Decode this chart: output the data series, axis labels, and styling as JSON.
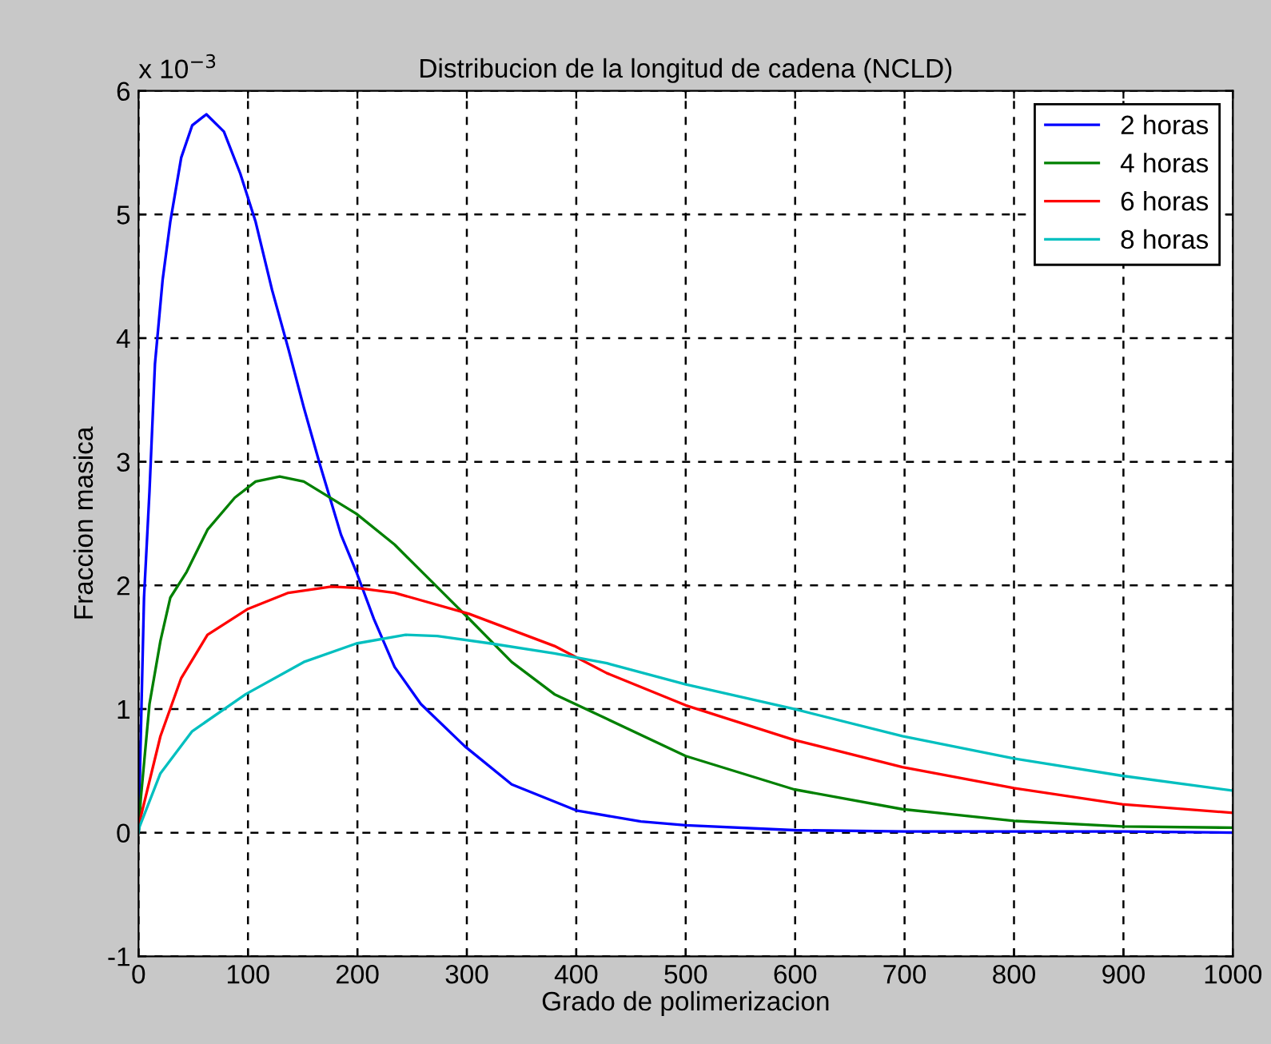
{
  "chart_data": {
    "type": "line",
    "title": "Distribucion de la longitud de cadena (NCLD)",
    "xlabel": "Grado de polimerizacion",
    "ylabel": "Fraccion masica",
    "annotations": [
      "x 10$^{−3}$"
    ],
    "xlim": [
      0,
      1000
    ],
    "xticks": [
      0,
      100,
      200,
      300,
      400,
      500,
      600,
      700,
      800,
      900,
      1000
    ],
    "ylim": [
      -1,
      6
    ],
    "yticks": [
      -1,
      0,
      1,
      2,
      3,
      4,
      5,
      6
    ],
    "grid": true,
    "legend": "top right",
    "line_style": "solid",
    "series": [
      {
        "name": "2 horas",
        "color": "#0000ff",
        "x": [
          0,
          5,
          10,
          15,
          22,
          29,
          39,
          49,
          62,
          78,
          93,
          107,
          122,
          137,
          151,
          166,
          185,
          199,
          215,
          234,
          258,
          298,
          341,
          400,
          459,
          500,
          599,
          700,
          800,
          900,
          1000
        ],
        "values": [
          0,
          1.9,
          2.76,
          3.79,
          4.47,
          4.94,
          5.46,
          5.72,
          5.81,
          5.67,
          5.33,
          4.94,
          4.39,
          3.91,
          3.44,
          2.97,
          2.41,
          2.11,
          1.73,
          1.34,
          1.04,
          0.7,
          0.39,
          0.18,
          0.09,
          0.06,
          0.02,
          0.01,
          0.01,
          0.01,
          0
        ]
      },
      {
        "name": "4 horas",
        "color": "#008000",
        "x": [
          0,
          2,
          10,
          20,
          29,
          44,
          63,
          88,
          107,
          129,
          151,
          199,
          234,
          268,
          302,
          341,
          380,
          428,
          500,
          599,
          698,
          800,
          899,
          1000
        ],
        "values": [
          0,
          0.27,
          1.04,
          1.55,
          1.9,
          2.11,
          2.45,
          2.71,
          2.84,
          2.88,
          2.84,
          2.58,
          2.33,
          2.03,
          1.73,
          1.38,
          1.12,
          0.92,
          0.62,
          0.35,
          0.19,
          0.095,
          0.05,
          0.04
        ]
      },
      {
        "name": "6 horas",
        "color": "#ff0000",
        "x": [
          0,
          1,
          20,
          39,
          63,
          100,
          137,
          176,
          199,
          234,
          302,
          380,
          428,
          500,
          599,
          698,
          800,
          899,
          1000
        ],
        "values": [
          0,
          0.09,
          0.78,
          1.25,
          1.6,
          1.81,
          1.94,
          1.99,
          1.98,
          1.94,
          1.77,
          1.51,
          1.29,
          1.03,
          0.75,
          0.53,
          0.36,
          0.23,
          0.16
        ]
      },
      {
        "name": "8 horas",
        "color": "#00bfbf",
        "x": [
          0,
          1,
          20,
          49,
          98,
          151,
          199,
          244,
          273,
          322,
          380,
          428,
          500,
          599,
          698,
          800,
          899,
          1000
        ],
        "values": [
          0,
          0.05,
          0.48,
          0.82,
          1.12,
          1.38,
          1.53,
          1.6,
          1.59,
          1.53,
          1.45,
          1.37,
          1.2,
          1.0,
          0.78,
          0.6,
          0.46,
          0.34
        ]
      }
    ]
  }
}
